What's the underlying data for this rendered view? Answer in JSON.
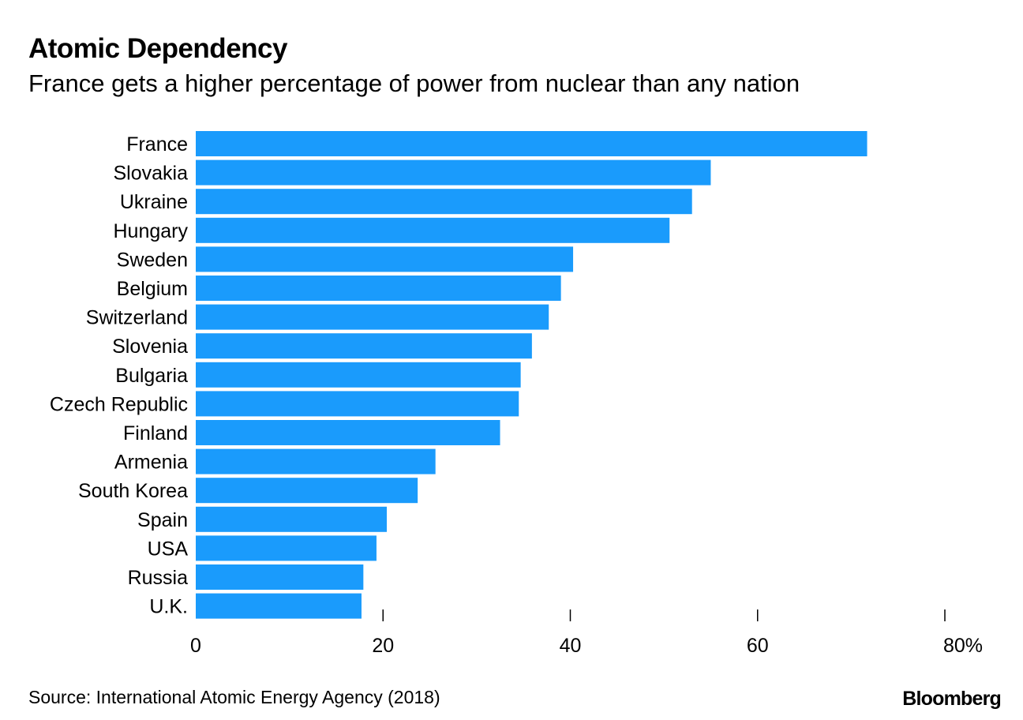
{
  "chart_data": {
    "type": "bar",
    "orientation": "horizontal",
    "title": "Atomic Dependency",
    "subtitle": "France gets a higher percentage of power from nuclear than any nation",
    "categories": [
      "France",
      "Slovakia",
      "Ukraine",
      "Hungary",
      "Sweden",
      "Belgium",
      "Switzerland",
      "Slovenia",
      "Bulgaria",
      "Czech Republic",
      "Finland",
      "Armenia",
      "South Korea",
      "Spain",
      "USA",
      "Russia",
      "U.K."
    ],
    "values": [
      71.7,
      55.0,
      53.0,
      50.6,
      40.3,
      39.0,
      37.7,
      35.9,
      34.7,
      34.5,
      32.5,
      25.6,
      23.7,
      20.4,
      19.3,
      17.9,
      17.7
    ],
    "xlim": [
      0,
      80
    ],
    "xticks": [
      0,
      20,
      40,
      60,
      80
    ],
    "xtick_labels": [
      "0",
      "20",
      "40",
      "60",
      "80%"
    ],
    "bar_color": "#1a9bfc",
    "xlabel": "",
    "ylabel": "",
    "grid": false
  },
  "footer": {
    "source": "Source: International Atomic Energy Agency (2018)",
    "brand": "Bloomberg"
  }
}
